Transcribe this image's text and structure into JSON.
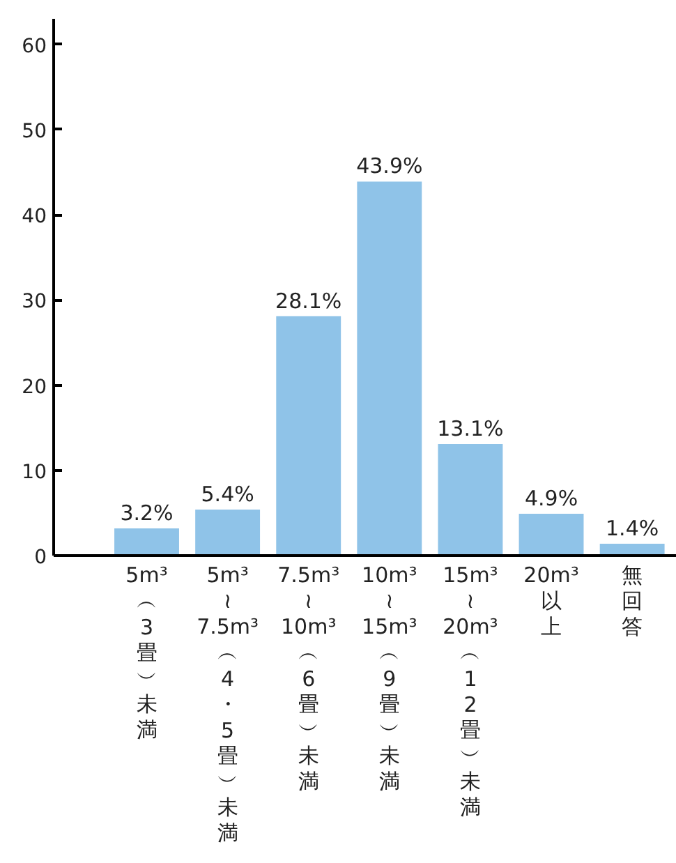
{
  "chart_data": {
    "type": "bar",
    "categories": [
      "5m³︵3畳︶未満",
      "5m³≀7.5m³︵4・5畳︶未満",
      "7.5m³≀10m³︵6畳︶未満",
      "10m³≀15m³︵9畳︶未満",
      "15m³≀20m³︵12畳︶未満",
      "20m³以上",
      "無回答"
    ],
    "values": [
      3.2,
      5.4,
      28.1,
      43.9,
      13.1,
      4.9,
      1.4
    ],
    "color": "#8fc3e8",
    "value_labels": [
      "3.2%",
      "5.4%",
      "28.1%",
      "43.9%",
      "13.1%",
      "4.9%",
      "1.4%"
    ],
    "ylim": [
      0,
      63
    ],
    "yticks": [
      0,
      10,
      20,
      30,
      40,
      50,
      60
    ],
    "grid": false
  }
}
